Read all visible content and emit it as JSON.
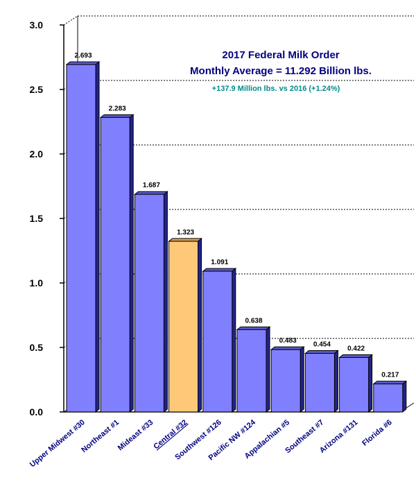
{
  "chart_data": {
    "type": "bar",
    "title": "2017 Federal Milk Order",
    "subtitle": "Monthly Average = 11.292 Billion lbs.",
    "annotation": "+137.9 Million lbs. vs 2016 (+1.24%)",
    "xlabel": "",
    "ylabel": "",
    "ylim": [
      0,
      3.0
    ],
    "yticks": [
      "0.0",
      "0.5",
      "1.0",
      "1.5",
      "2.0",
      "2.5",
      "3.0"
    ],
    "grid": "dashed horizontal on back wall",
    "categories": [
      "Upper Midwest #30",
      "Northeast #1",
      "Mideast #33",
      "Central #32",
      "Southwest #126",
      "Pacific NW #124",
      "Appalachian #5",
      "Southeast #7",
      "Arizona #131",
      "Florida #6"
    ],
    "values": [
      2.693,
      2.283,
      1.687,
      1.323,
      1.091,
      0.638,
      0.483,
      0.454,
      0.422,
      0.217
    ],
    "value_labels": [
      "2.693",
      "2.283",
      "1.687",
      "1.323",
      "1.091",
      "0.638",
      "0.483",
      "0.454",
      "0.422",
      "0.217"
    ],
    "highlight_category": "Central #32",
    "colors": {
      "bar": "#8080ff",
      "bar_side": "#23238c",
      "bar_top": "#5a5ac8",
      "highlight": "#ffc878",
      "highlight_side": "#23238c",
      "highlight_top": "#dca050",
      "axis_text": "#000000",
      "category_text": "#000080",
      "title_text": "#000080",
      "annotation_text": "#008b8b"
    }
  }
}
